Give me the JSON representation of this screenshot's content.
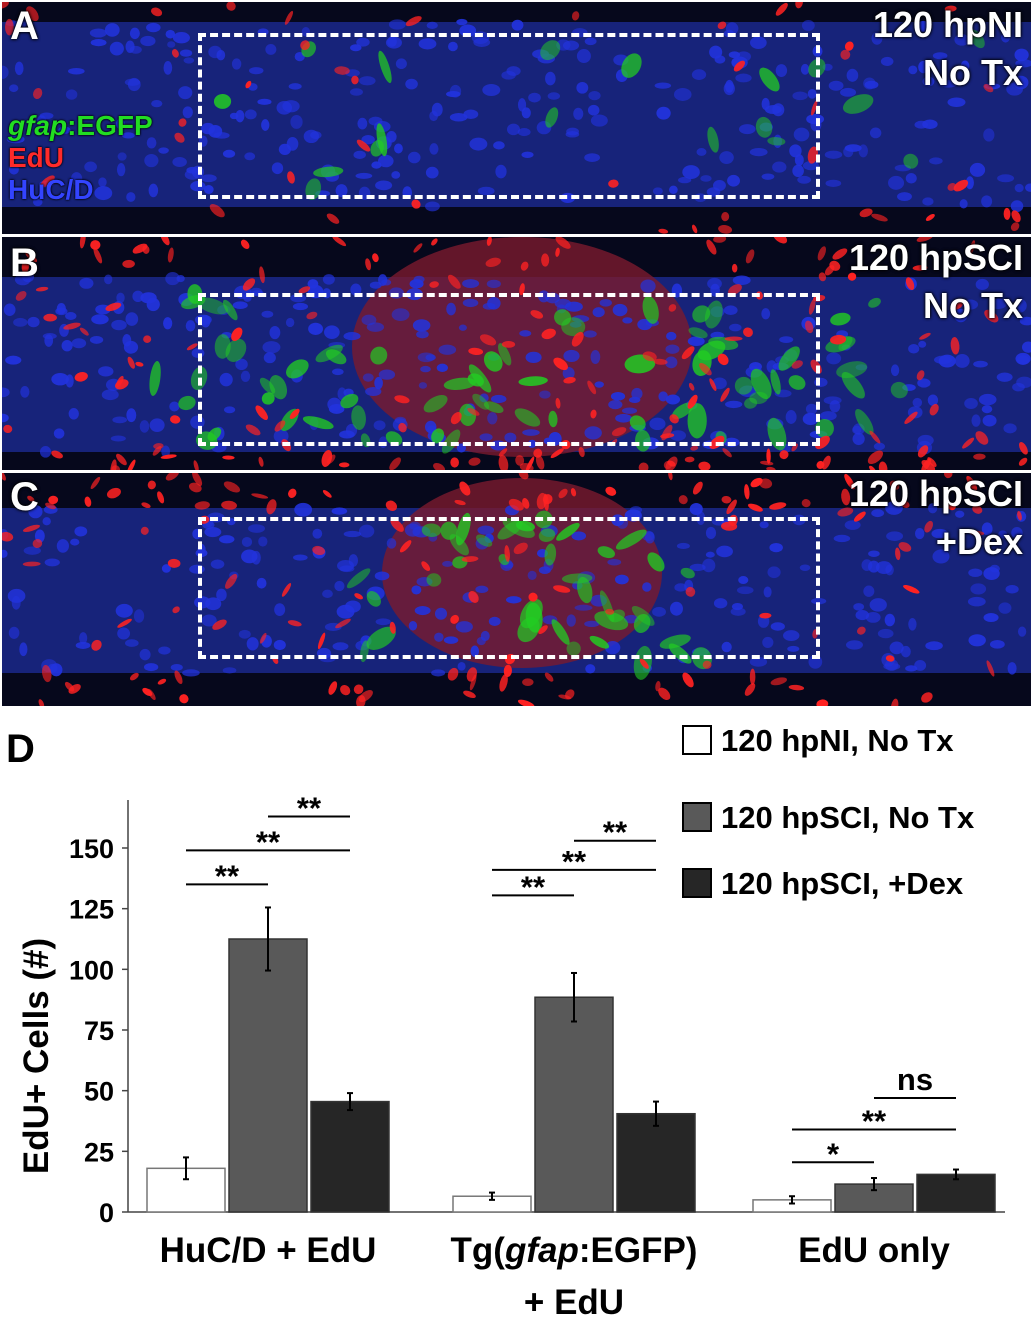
{
  "panels": [
    {
      "letter": "A",
      "condition": [
        "120 hpNI",
        "No Tx"
      ]
    },
    {
      "letter": "B",
      "condition": [
        "120 hpSCI",
        "No Tx"
      ]
    },
    {
      "letter": "C",
      "condition": [
        "120 hpSCI",
        "+Dex"
      ]
    }
  ],
  "channels": {
    "gfap_italic": "gfap",
    "gfap_rest": ":EGFP",
    "edu": "EdU",
    "hucd": "HuC/D"
  },
  "colors": {
    "green_channel": "#22cc22",
    "red_channel": "#ff2222",
    "blue_channel": "#2233dd",
    "bar_nonly": "#ffffff",
    "bar_sci": "#595959",
    "bar_dex": "#262626"
  },
  "chart_panel_letter": "D",
  "chart_data": {
    "type": "bar",
    "ylabel": "EdU+ Cells (#)",
    "ylim": [
      0,
      165
    ],
    "yticks": [
      0,
      25,
      50,
      75,
      100,
      125,
      150
    ],
    "categories": [
      {
        "lines": [
          {
            "parts": [
              {
                "text": "HuC/D + EdU",
                "italic": false
              }
            ]
          }
        ]
      },
      {
        "lines": [
          {
            "parts": [
              {
                "text": "Tg(",
                "italic": false
              },
              {
                "text": "gfap",
                "italic": true
              },
              {
                "text": ":EGFP)",
                "italic": false
              }
            ]
          },
          {
            "parts": [
              {
                "text": "+ EdU",
                "italic": false
              }
            ]
          }
        ]
      },
      {
        "lines": [
          {
            "parts": [
              {
                "text": "EdU only",
                "italic": false
              }
            ]
          }
        ]
      }
    ],
    "series": [
      {
        "name": "120 hpNI, No Tx",
        "values": [
          18,
          6.5,
          5
        ],
        "errors": [
          4.5,
          1.5,
          1.5
        ]
      },
      {
        "name": "120 hpSCI, No Tx",
        "values": [
          112.5,
          88.5,
          11.5
        ],
        "errors": [
          13,
          10,
          2.5
        ]
      },
      {
        "name": "120 hpSCI, +Dex",
        "values": [
          45.5,
          40.5,
          15.5
        ],
        "errors": [
          3.5,
          5,
          2
        ]
      }
    ],
    "significance": [
      {
        "group": 0,
        "from": 0,
        "to": 1,
        "level": 135,
        "label": "**"
      },
      {
        "group": 0,
        "from": 0,
        "to": 2,
        "level": 149,
        "label": "**"
      },
      {
        "group": 0,
        "from": 1,
        "to": 2,
        "level": 163,
        "label": "**"
      },
      {
        "group": 1,
        "from": 0,
        "to": 1,
        "level": 130.5,
        "label": "**"
      },
      {
        "group": 1,
        "from": 0,
        "to": 2,
        "level": 141,
        "label": "**"
      },
      {
        "group": 1,
        "from": 1,
        "to": 2,
        "level": 153,
        "label": "**"
      },
      {
        "group": 2,
        "from": 0,
        "to": 1,
        "level": 20.5,
        "label": "*"
      },
      {
        "group": 2,
        "from": 0,
        "to": 2,
        "level": 34,
        "label": "**"
      },
      {
        "group": 2,
        "from": 1,
        "to": 2,
        "level": 47,
        "label": "ns"
      }
    ]
  }
}
